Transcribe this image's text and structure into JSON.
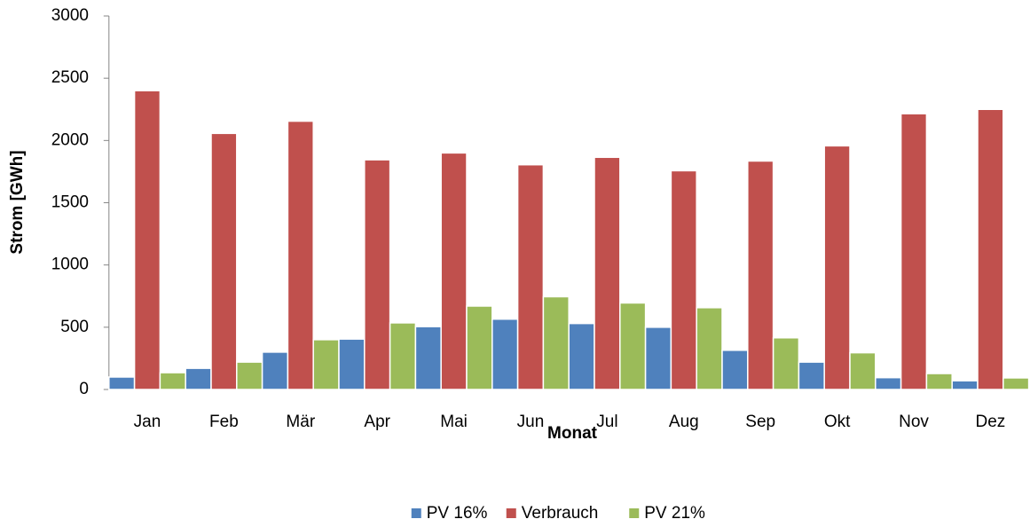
{
  "chart_data": {
    "type": "bar",
    "x_label": "Monat",
    "y_label": "Strom [GWh]",
    "categories": [
      "Jan",
      "Feb",
      "Mär",
      "Apr",
      "Mai",
      "Jun",
      "Jul",
      "Aug",
      "Sep",
      "Okt",
      "Nov",
      "Dez"
    ],
    "series": [
      {
        "name": "PV 16%",
        "color": "#4f81bd",
        "values": [
          100,
          170,
          300,
          405,
          505,
          565,
          530,
          500,
          315,
          220,
          95,
          70
        ]
      },
      {
        "name": "Verbrauch",
        "color": "#c0504d",
        "values": [
          2400,
          2057,
          2155,
          1845,
          1900,
          1805,
          1865,
          1757,
          1835,
          1957,
          2215,
          2250
        ]
      },
      {
        "name": "PV 21%",
        "color": "#9bbb59",
        "values": [
          135,
          220,
          400,
          535,
          670,
          745,
          695,
          657,
          415,
          295,
          128,
          93
        ]
      }
    ],
    "ylim": [
      0,
      3000
    ],
    "yticks": [
      0,
      500,
      1000,
      1500,
      2000,
      2500,
      3000
    ],
    "grid": false,
    "legend": "bottom"
  }
}
